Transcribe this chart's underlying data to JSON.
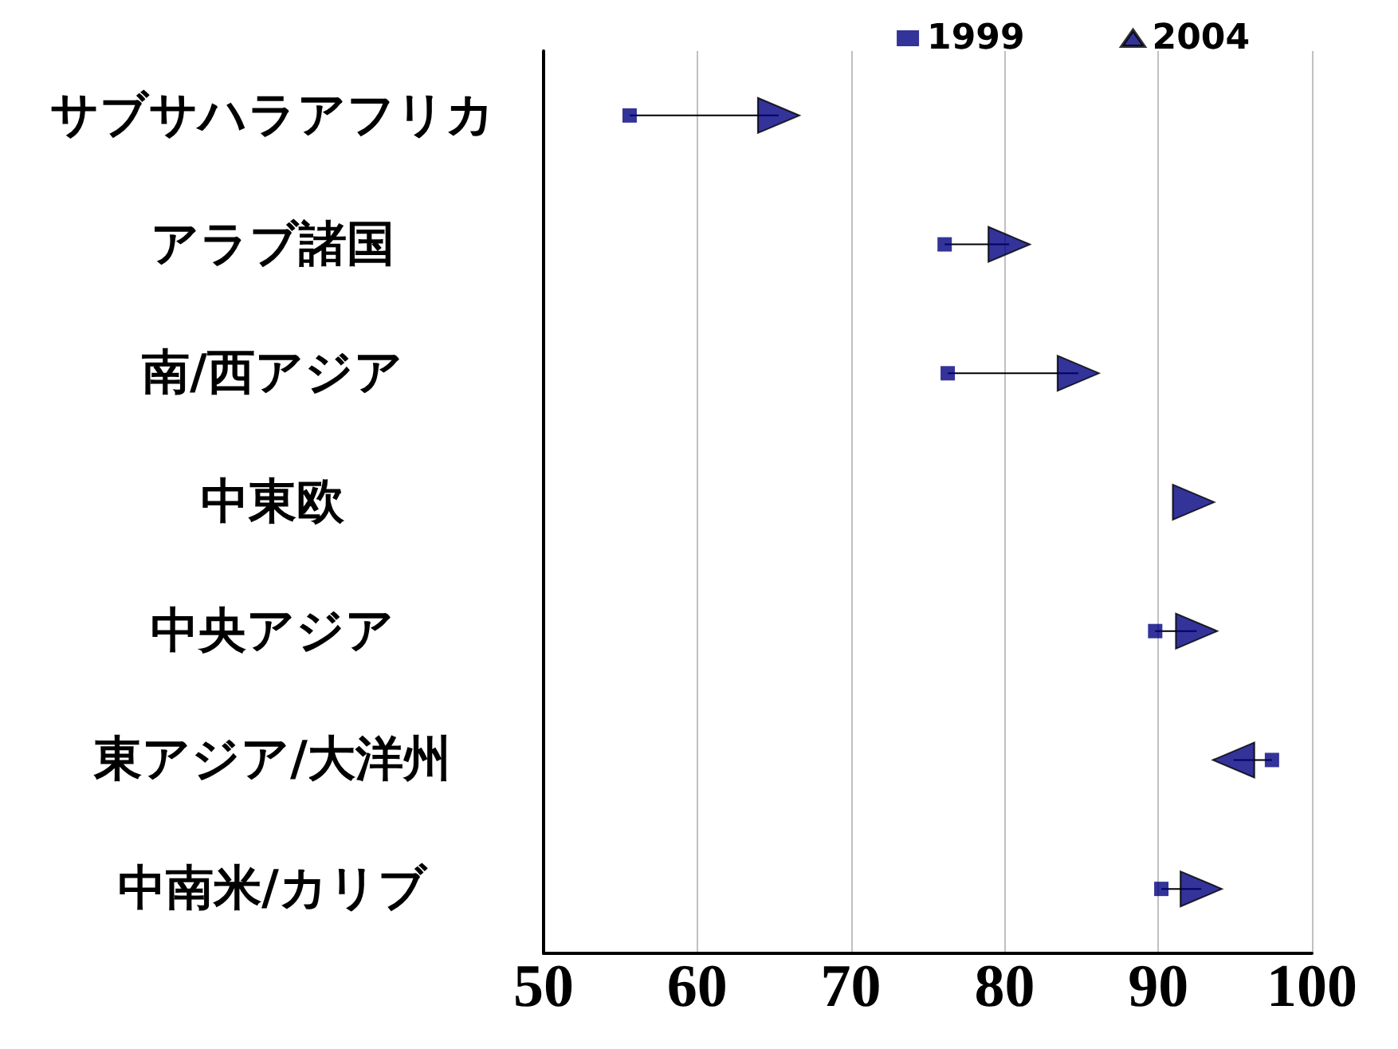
{
  "chart_data": {
    "type": "scatter",
    "orientation": "horizontal",
    "categories": [
      "サブサハラアフリカ",
      "アラブ諸国",
      "南/西アジア",
      "中東欧",
      "中央アジア",
      "東アジア/大洋州",
      "中南米/カリブ"
    ],
    "series": [
      {
        "name": "1999",
        "color": "#000080",
        "marker": "square",
        "values": [
          55.6,
          76.1,
          76.3,
          null,
          89.8,
          97.4,
          90.2
        ]
      },
      {
        "name": "2004",
        "color": "#000080",
        "marker": "triangle",
        "values": [
          65.3,
          80.3,
          84.8,
          92.3,
          92.5,
          94.9,
          92.8
        ]
      }
    ],
    "xlim": [
      50,
      100
    ],
    "xticks": [
      50,
      60,
      70,
      80,
      90,
      100
    ],
    "grid": "x",
    "legend": "top right"
  }
}
